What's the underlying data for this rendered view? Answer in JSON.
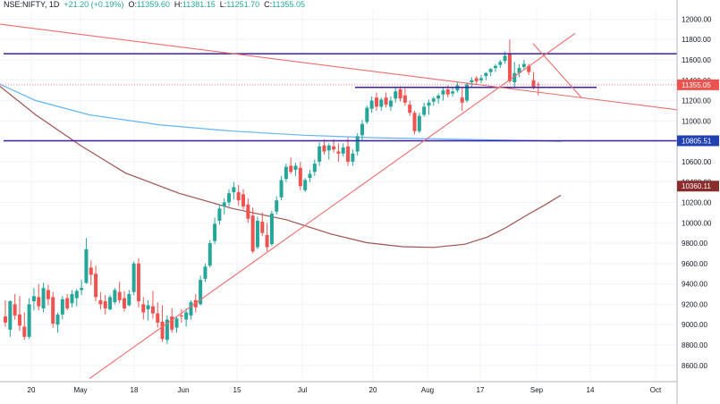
{
  "header": {
    "symbol": "NSE:NIFTY, 1D",
    "change": "+21.20 (+0.19%)",
    "ohlc": [
      {
        "k": "O:",
        "v": "11359.60"
      },
      {
        "k": "H:",
        "v": "11381.15"
      },
      {
        "k": "L:",
        "v": "11251.70"
      },
      {
        "k": "C:",
        "v": "11355.05"
      }
    ],
    "last": "11355.05"
  },
  "colors": {
    "up": "#26a69a",
    "down": "#ef5350",
    "trendline": "#ef6c6c",
    "resistance": "#3d1fa8",
    "ma_short": "#64b5f6",
    "ma_long": "#a0524f",
    "price_badge": "#ef5350",
    "level_badge": "#2241b0",
    "ma_badge": "#8b2c2c"
  },
  "chart_data": {
    "type": "candlestick",
    "ylim": [
      8440,
      12100
    ],
    "y_ticks": [
      12000,
      11800,
      11600,
      11400,
      11200,
      11000,
      10800,
      10600,
      10400,
      10200,
      10000,
      9800,
      9600,
      9400,
      9200,
      9000,
      8800,
      8600
    ],
    "x_ticks": [
      "20",
      "May",
      "18",
      "Jun",
      "15",
      "Jul",
      "20",
      "Aug",
      "17",
      "Sep",
      "14",
      "Oct"
    ],
    "price_labels": [
      {
        "value": 11355.05,
        "text": "11355.05",
        "kind": "price"
      },
      {
        "value": 10805.51,
        "text": "10805.51",
        "kind": "level"
      },
      {
        "value": 10360.11,
        "text": "10360.11",
        "kind": "ma"
      }
    ],
    "horizontal_levels": [
      11660,
      10805.51,
      11330
    ],
    "moving_averages": [
      {
        "points": [
          [
            0,
            11360
          ],
          [
            40,
            11200
          ],
          [
            100,
            11060
          ],
          [
            180,
            10960
          ],
          [
            260,
            10900
          ],
          [
            340,
            10860
          ],
          [
            420,
            10835
          ],
          [
            500,
            10822
          ],
          [
            560,
            10812
          ],
          [
            600,
            10806
          ],
          [
            627,
            10800
          ]
        ]
      },
      {
        "points": [
          [
            0,
            11340
          ],
          [
            40,
            11060
          ],
          [
            90,
            10760
          ],
          [
            140,
            10490
          ],
          [
            200,
            10290
          ],
          [
            260,
            10140
          ],
          [
            320,
            10030
          ],
          [
            370,
            9890
          ],
          [
            410,
            9805
          ],
          [
            450,
            9765
          ],
          [
            485,
            9758
          ],
          [
            520,
            9790
          ],
          [
            545,
            9860
          ],
          [
            565,
            9950
          ],
          [
            590,
            10080
          ],
          [
            610,
            10180
          ],
          [
            627,
            10270
          ]
        ]
      }
    ],
    "trendlines": [
      {
        "from": [
          0,
          11950
        ],
        "to": [
          757,
          11110
        ]
      },
      {
        "from": [
          100,
          8470
        ],
        "to": [
          643,
          11860
        ]
      },
      {
        "from": [
          596,
          11760
        ],
        "to": [
          650,
          11230
        ]
      }
    ],
    "candles": [
      [
        9080,
        9240,
        8980,
        9020
      ],
      [
        8950,
        9240,
        8880,
        9230
      ],
      [
        9200,
        9300,
        9050,
        9090
      ],
      [
        9100,
        9280,
        8940,
        8990
      ],
      [
        8980,
        9120,
        8850,
        8880
      ],
      [
        8880,
        9260,
        8860,
        9200
      ],
      [
        9230,
        9360,
        9140,
        9280
      ],
      [
        9270,
        9400,
        9140,
        9180
      ],
      [
        9160,
        9410,
        9120,
        9360
      ],
      [
        9340,
        9390,
        9190,
        9250
      ],
      [
        9270,
        9320,
        8970,
        9010
      ],
      [
        9000,
        9120,
        8920,
        9100
      ],
      [
        9100,
        9280,
        9050,
        9250
      ],
      [
        9260,
        9300,
        9140,
        9160
      ],
      [
        9210,
        9340,
        9170,
        9300
      ],
      [
        9260,
        9350,
        9180,
        9330
      ],
      [
        9340,
        9440,
        9290,
        9360
      ],
      [
        9410,
        9850,
        9400,
        9740
      ],
      [
        9560,
        9630,
        9390,
        9490
      ],
      [
        9500,
        9580,
        9230,
        9270
      ],
      [
        9240,
        9320,
        9150,
        9200
      ],
      [
        9230,
        9290,
        9100,
        9160
      ],
      [
        9150,
        9290,
        9140,
        9270
      ],
      [
        9220,
        9360,
        9200,
        9340
      ],
      [
        9320,
        9420,
        9210,
        9240
      ],
      [
        9260,
        9330,
        9130,
        9160
      ],
      [
        9190,
        9340,
        9180,
        9300
      ],
      [
        9320,
        9620,
        9290,
        9600
      ],
      [
        9600,
        9650,
        9170,
        9230
      ],
      [
        9200,
        9270,
        9050,
        9120
      ],
      [
        9150,
        9240,
        9040,
        9190
      ],
      [
        9180,
        9330,
        9060,
        9110
      ],
      [
        9110,
        9220,
        8970,
        9020
      ],
      [
        9030,
        9190,
        8830,
        8860
      ],
      [
        8850,
        9090,
        8810,
        9050
      ],
      [
        9080,
        9160,
        8920,
        8950
      ],
      [
        8970,
        9080,
        8920,
        9060
      ],
      [
        9090,
        9150,
        9020,
        9080
      ],
      [
        9050,
        9160,
        8980,
        9120
      ],
      [
        9090,
        9240,
        9050,
        9220
      ],
      [
        9240,
        9300,
        9120,
        9170
      ],
      [
        9200,
        9480,
        9190,
        9440
      ],
      [
        9450,
        9600,
        9420,
        9570
      ],
      [
        9580,
        9830,
        9560,
        9800
      ],
      [
        9820,
        10050,
        9790,
        9990
      ],
      [
        10020,
        10180,
        9980,
        10140
      ],
      [
        10160,
        10240,
        10080,
        10200
      ],
      [
        10200,
        10330,
        10160,
        10290
      ],
      [
        10300,
        10400,
        10230,
        10350
      ],
      [
        10300,
        10370,
        10170,
        10220
      ],
      [
        10280,
        10330,
        10130,
        10160
      ],
      [
        10180,
        10240,
        10000,
        10040
      ],
      [
        10070,
        10150,
        9700,
        9720
      ],
      [
        9760,
        10060,
        9740,
        10020
      ],
      [
        10010,
        10100,
        9870,
        9900
      ],
      [
        9880,
        10000,
        9720,
        9760
      ],
      [
        9790,
        10120,
        9770,
        10090
      ],
      [
        10110,
        10260,
        10080,
        10220
      ],
      [
        10250,
        10460,
        10220,
        10420
      ],
      [
        10430,
        10580,
        10400,
        10550
      ],
      [
        10560,
        10640,
        10480,
        10500
      ],
      [
        10520,
        10590,
        10460,
        10560
      ],
      [
        10540,
        10600,
        10320,
        10360
      ],
      [
        10320,
        10440,
        10300,
        10420
      ],
      [
        10440,
        10520,
        10400,
        10480
      ],
      [
        10500,
        10620,
        10460,
        10580
      ],
      [
        10600,
        10790,
        10560,
        10750
      ],
      [
        10760,
        10820,
        10670,
        10700
      ],
      [
        10710,
        10780,
        10620,
        10760
      ],
      [
        10750,
        10820,
        10690,
        10720
      ],
      [
        10700,
        10780,
        10600,
        10680
      ],
      [
        10680,
        10780,
        10650,
        10740
      ],
      [
        10750,
        10840,
        10560,
        10600
      ],
      [
        10600,
        10720,
        10560,
        10680
      ],
      [
        10700,
        10880,
        10660,
        10850
      ],
      [
        10860,
        11010,
        10800,
        10970
      ],
      [
        10990,
        11150,
        10970,
        11130
      ],
      [
        11120,
        11240,
        11080,
        11200
      ],
      [
        11230,
        11280,
        11100,
        11140
      ],
      [
        11140,
        11230,
        11100,
        11210
      ],
      [
        11230,
        11280,
        11130,
        11160
      ],
      [
        11140,
        11240,
        11100,
        11200
      ],
      [
        11220,
        11330,
        11180,
        11290
      ],
      [
        11310,
        11340,
        11190,
        11220
      ],
      [
        11250,
        11320,
        11150,
        11180
      ],
      [
        11160,
        11200,
        11050,
        11080
      ],
      [
        11080,
        11100,
        10870,
        10900
      ],
      [
        10900,
        11080,
        10880,
        11050
      ],
      [
        11060,
        11180,
        11040,
        11140
      ],
      [
        11150,
        11210,
        11060,
        11180
      ],
      [
        11190,
        11240,
        11150,
        11220
      ],
      [
        11220,
        11270,
        11170,
        11250
      ],
      [
        11260,
        11330,
        11200,
        11300
      ],
      [
        11310,
        11350,
        11230,
        11260
      ],
      [
        11270,
        11330,
        11240,
        11290
      ],
      [
        11300,
        11380,
        11280,
        11350
      ],
      [
        11230,
        11330,
        11100,
        11180
      ],
      [
        11200,
        11380,
        11180,
        11360
      ],
      [
        11380,
        11430,
        11330,
        11400
      ],
      [
        11420,
        11440,
        11360,
        11390
      ],
      [
        11400,
        11450,
        11370,
        11420
      ],
      [
        11440,
        11480,
        11400,
        11470
      ],
      [
        11480,
        11520,
        11440,
        11510
      ],
      [
        11520,
        11560,
        11480,
        11540
      ],
      [
        11550,
        11600,
        11520,
        11580
      ],
      [
        11590,
        11680,
        11560,
        11640
      ],
      [
        11660,
        11800,
        11370,
        11390
      ],
      [
        11380,
        11580,
        11330,
        11470
      ],
      [
        11470,
        11560,
        11430,
        11520
      ],
      [
        11530,
        11600,
        11500,
        11560
      ],
      [
        11540,
        11560,
        11450,
        11480
      ],
      [
        11400,
        11480,
        11310,
        11330
      ],
      [
        11359.6,
        11381.15,
        11251.7,
        11355.05
      ]
    ]
  }
}
